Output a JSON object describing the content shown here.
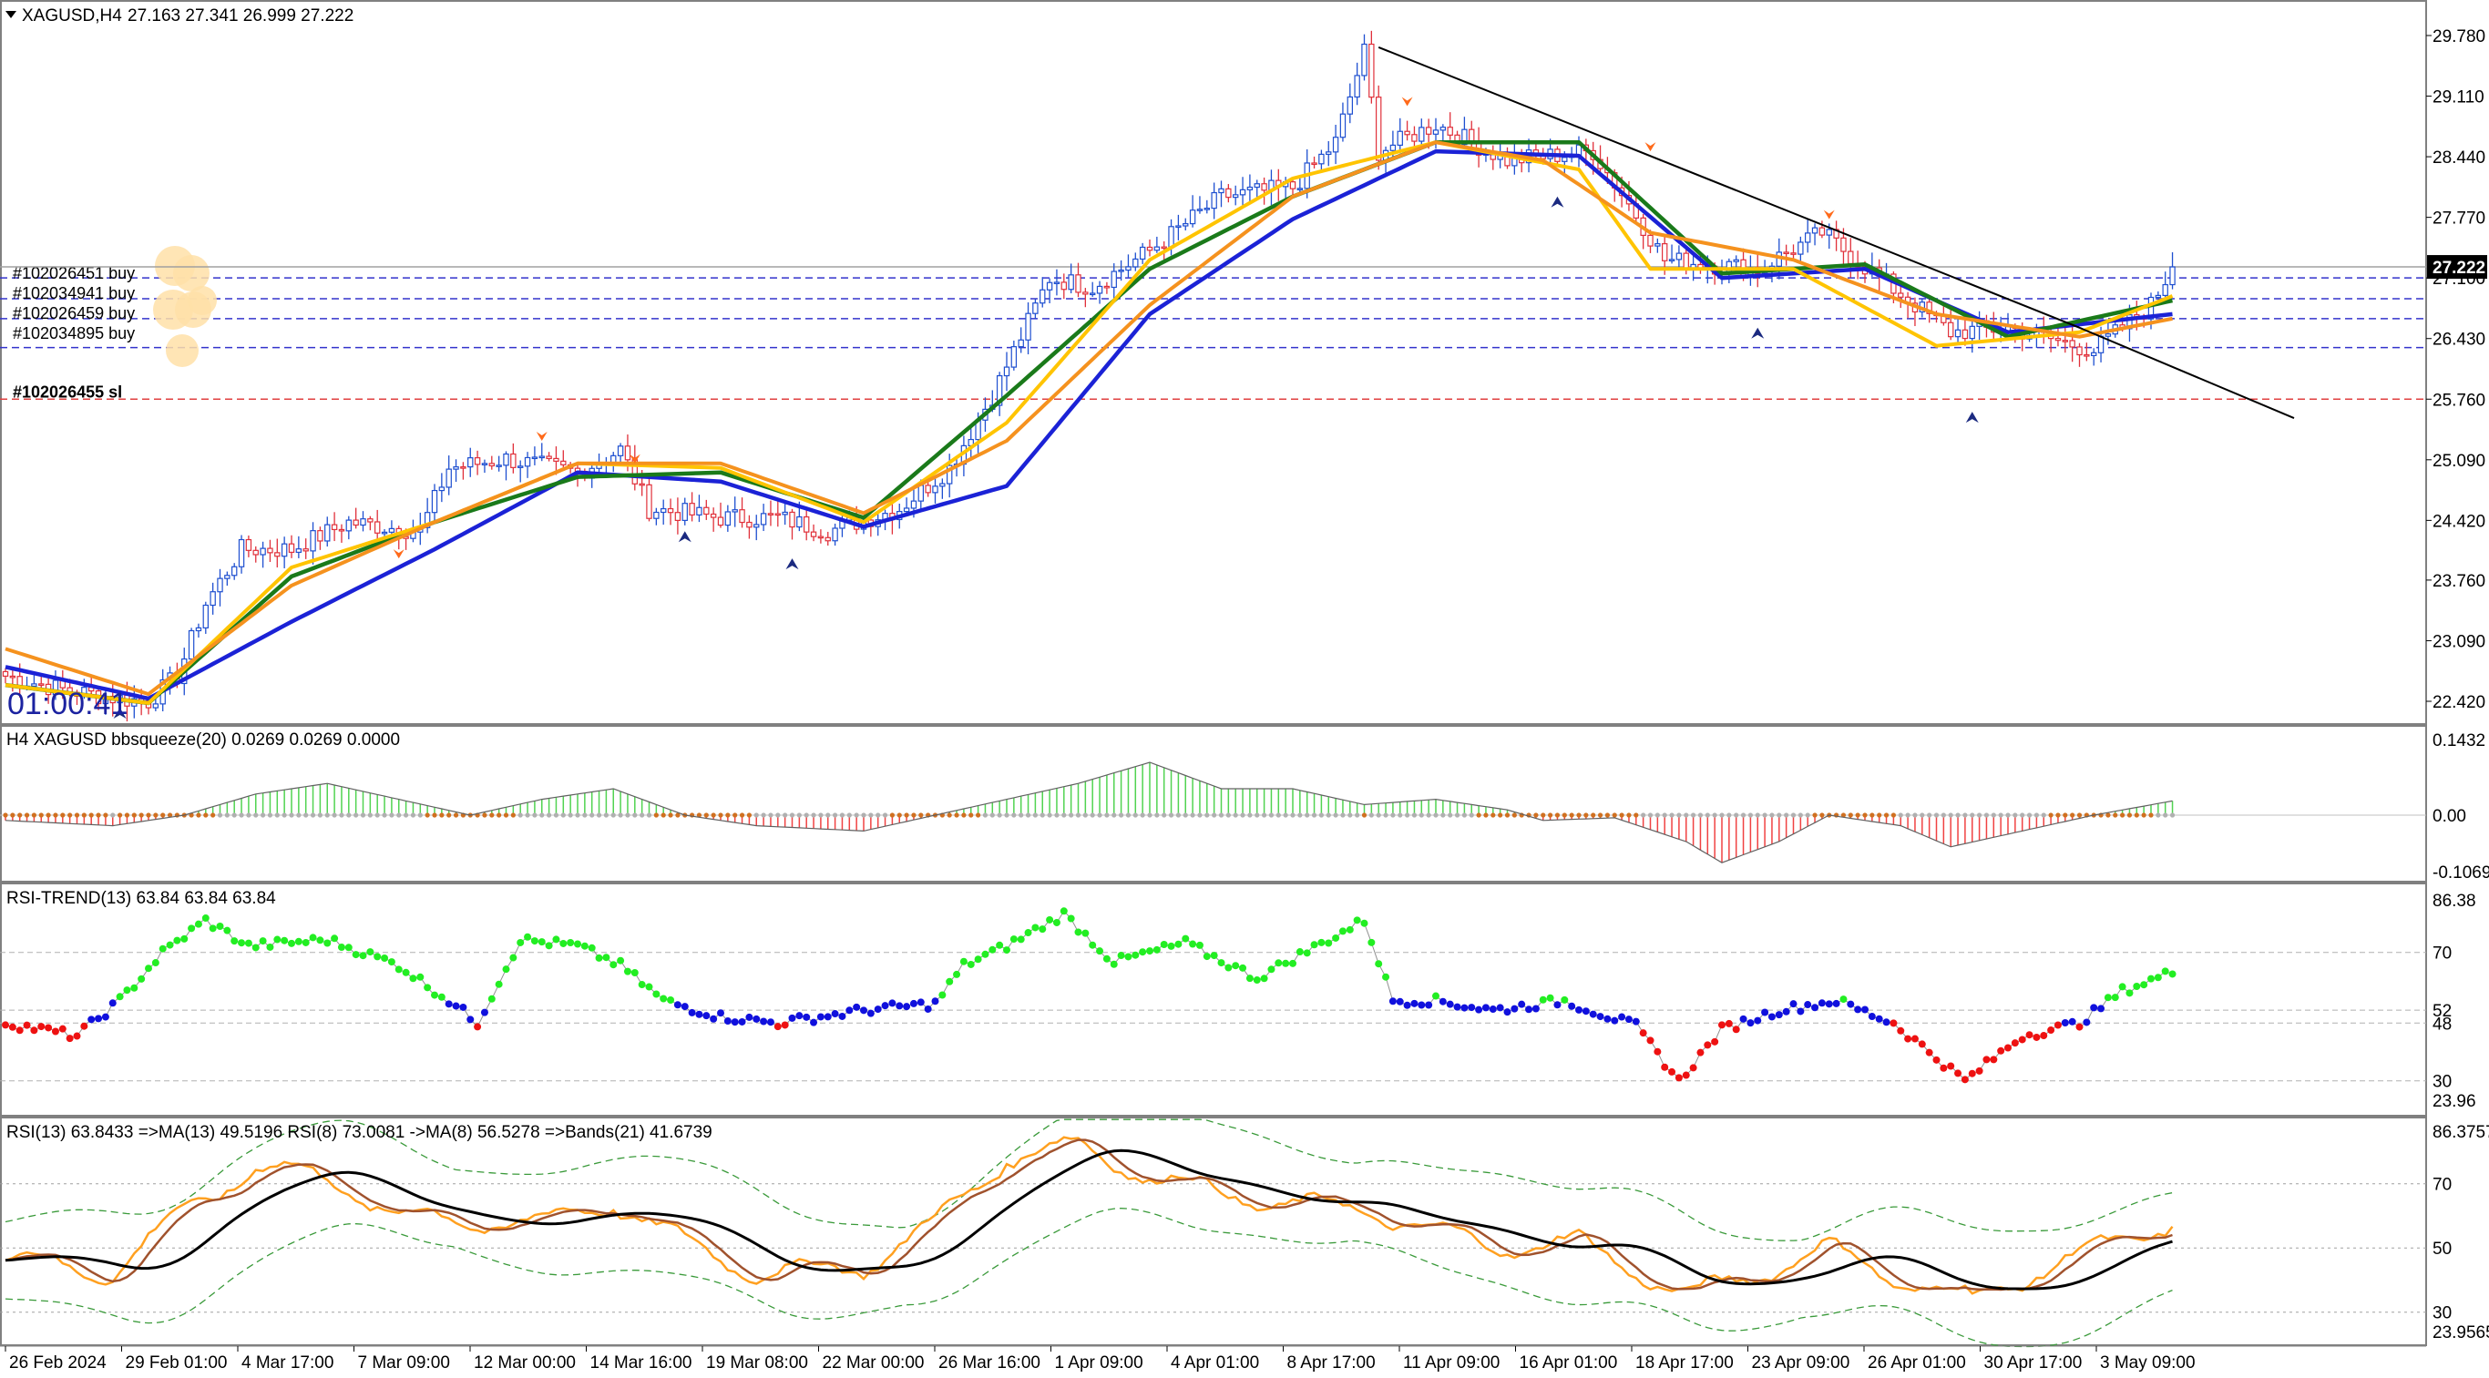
{
  "header": {
    "symbol": "XAGUSD,H4",
    "ohlc": "27.163 27.341 26.999 27.222",
    "collapse_icon": "triangle-down-icon"
  },
  "timer": "01:00:41",
  "current_price": "27.222",
  "colors": {
    "bull_candle": "#1e4fd0",
    "bear_candle": "#e0303a",
    "ma_blue": "#1b22d6",
    "ma_green": "#1a7a1a",
    "ma_yellow": "#ffc400",
    "ma_orange": "#f5921e",
    "trendline": "#000000",
    "hist_up": "#33cc33",
    "hist_down": "#ee2222",
    "rsi_green": "#22ee22",
    "rsi_blue": "#1010dd",
    "rsi_red": "#ee1111"
  },
  "orders": [
    {
      "label": "#102026451 buy",
      "price": "27.100"
    },
    {
      "label": "#102034941 buy",
      "price": "26.870"
    },
    {
      "label": "#102026459 buy",
      "price": "26.650"
    },
    {
      "label": "#102034895 buy",
      "price": "26.330"
    },
    {
      "label": "#102026455 sl",
      "price": "25.760"
    }
  ],
  "panes": {
    "bbsqueeze": {
      "title": "H4 XAGUSD bbsqueeze(20) 0.0269 0.0269 0.0000",
      "levels": [
        "0.1432",
        "0.00",
        "-0.1069"
      ]
    },
    "rsi_trend": {
      "title": "RSI-TREND(13) 63.84 63.84 63.84",
      "levels": [
        "86.38",
        "70",
        "52",
        "48",
        "30",
        "23.96"
      ]
    },
    "rsi": {
      "title": "RSI(13) 63.8433  =>MA(13) 49.5196  RSI(8) 73.0081  ->MA(8) 56.5278  =>Bands(21) 41.6739",
      "levels": [
        "86.3757",
        "70",
        "50",
        "30",
        "23.9565"
      ]
    }
  },
  "chart_data": {
    "type": "candlestick",
    "symbol": "XAGUSD",
    "timeframe": "H4",
    "y_ticks": [
      "29.780",
      "29.110",
      "28.440",
      "27.770",
      "27.100",
      "26.430",
      "25.760",
      "25.090",
      "24.420",
      "23.760",
      "23.090",
      "22.420"
    ],
    "ylim": [
      22.08,
      30.2
    ],
    "x_ticks": [
      "26 Feb 2024",
      "29 Feb 01:00",
      "4 Mar 17:00",
      "7 Mar 09:00",
      "12 Mar 00:00",
      "14 Mar 16:00",
      "19 Mar 08:00",
      "22 Mar 00:00",
      "26 Mar 16:00",
      "1 Apr 09:00",
      "4 Apr 01:00",
      "8 Apr 17:00",
      "11 Apr 09:00",
      "16 Apr 01:00",
      "18 Apr 17:00",
      "23 Apr 09:00",
      "26 Apr 01:00",
      "30 Apr 17:00",
      "3 May 09:00"
    ],
    "close_path_anchors": [
      [
        0,
        22.7
      ],
      [
        8,
        22.55
      ],
      [
        16,
        22.45
      ],
      [
        20,
        22.42
      ],
      [
        24,
        22.7
      ],
      [
        28,
        23.5
      ],
      [
        33,
        24.1
      ],
      [
        40,
        24.1
      ],
      [
        48,
        24.4
      ],
      [
        58,
        24.3
      ],
      [
        62,
        25.0
      ],
      [
        70,
        25.1
      ],
      [
        80,
        24.95
      ],
      [
        86,
        25.2
      ],
      [
        90,
        24.55
      ],
      [
        100,
        24.45
      ],
      [
        108,
        24.45
      ],
      [
        115,
        24.3
      ],
      [
        125,
        24.55
      ],
      [
        132,
        25.0
      ],
      [
        138,
        25.8
      ],
      [
        146,
        27.1
      ],
      [
        152,
        27.0
      ],
      [
        160,
        27.4
      ],
      [
        170,
        28.0
      ],
      [
        180,
        28.1
      ],
      [
        186,
        28.6
      ],
      [
        190,
        29.6
      ],
      [
        192,
        28.5
      ],
      [
        200,
        28.8
      ],
      [
        210,
        28.4
      ],
      [
        222,
        28.5
      ],
      [
        228,
        27.8
      ],
      [
        232,
        27.3
      ],
      [
        245,
        27.2
      ],
      [
        254,
        27.6
      ],
      [
        262,
        27.1
      ],
      [
        272,
        26.5
      ],
      [
        280,
        26.55
      ],
      [
        292,
        26.3
      ],
      [
        300,
        26.8
      ],
      [
        303,
        27.222
      ]
    ],
    "series": [
      {
        "name": "",
        "anchors": [
          [
            0,
            22.8
          ],
          [
            20,
            22.45
          ],
          [
            40,
            23.3
          ],
          [
            60,
            24.1
          ],
          [
            80,
            24.95
          ],
          [
            100,
            24.85
          ],
          [
            120,
            24.35
          ],
          [
            140,
            24.8
          ],
          [
            160,
            26.7
          ],
          [
            180,
            27.75
          ],
          [
            200,
            28.5
          ],
          [
            220,
            28.45
          ],
          [
            240,
            27.1
          ],
          [
            260,
            27.2
          ],
          [
            280,
            26.5
          ],
          [
            303,
            26.7
          ]
        ]
      },
      {
        "name": "",
        "anchors": [
          [
            0,
            22.6
          ],
          [
            20,
            22.4
          ],
          [
            40,
            23.8
          ],
          [
            60,
            24.4
          ],
          [
            80,
            24.9
          ],
          [
            100,
            24.95
          ],
          [
            120,
            24.45
          ],
          [
            140,
            25.8
          ],
          [
            160,
            27.2
          ],
          [
            180,
            28.0
          ],
          [
            200,
            28.6
          ],
          [
            220,
            28.6
          ],
          [
            240,
            27.15
          ],
          [
            260,
            27.25
          ],
          [
            280,
            26.45
          ],
          [
            303,
            26.85
          ]
        ]
      },
      {
        "name": "",
        "anchors": [
          [
            0,
            22.6
          ],
          [
            20,
            22.4
          ],
          [
            40,
            23.9
          ],
          [
            60,
            24.4
          ],
          [
            80,
            25.05
          ],
          [
            100,
            25.0
          ],
          [
            120,
            24.4
          ],
          [
            140,
            25.5
          ],
          [
            160,
            27.3
          ],
          [
            180,
            28.2
          ],
          [
            200,
            28.6
          ],
          [
            220,
            28.3
          ],
          [
            230,
            27.2
          ],
          [
            250,
            27.2
          ],
          [
            270,
            26.35
          ],
          [
            290,
            26.5
          ],
          [
            303,
            26.9
          ]
        ]
      },
      {
        "name": "",
        "anchors": [
          [
            0,
            23.0
          ],
          [
            20,
            22.5
          ],
          [
            40,
            23.7
          ],
          [
            60,
            24.4
          ],
          [
            80,
            25.05
          ],
          [
            100,
            25.05
          ],
          [
            120,
            24.5
          ],
          [
            140,
            25.3
          ],
          [
            160,
            26.8
          ],
          [
            180,
            28.0
          ],
          [
            200,
            28.6
          ],
          [
            215,
            28.4
          ],
          [
            230,
            27.6
          ],
          [
            250,
            27.3
          ],
          [
            270,
            26.7
          ],
          [
            290,
            26.45
          ],
          [
            303,
            26.65
          ]
        ]
      }
    ],
    "trendline": [
      [
        192,
        29.65
      ],
      [
        290,
        26.55
      ],
      [
        320,
        25.55
      ]
    ],
    "bbsqueeze": {
      "anchors": [
        [
          0,
          -0.01
        ],
        [
          15,
          -0.02
        ],
        [
          25,
          0.0
        ],
        [
          35,
          0.04
        ],
        [
          45,
          0.06
        ],
        [
          55,
          0.03
        ],
        [
          65,
          0.0
        ],
        [
          75,
          0.03
        ],
        [
          85,
          0.05
        ],
        [
          95,
          0.0
        ],
        [
          105,
          -0.02
        ],
        [
          120,
          -0.03
        ],
        [
          130,
          0.0
        ],
        [
          140,
          0.03
        ],
        [
          150,
          0.06
        ],
        [
          160,
          0.1
        ],
        [
          170,
          0.05
        ],
        [
          180,
          0.05
        ],
        [
          190,
          0.02
        ],
        [
          200,
          0.03
        ],
        [
          210,
          0.01
        ],
        [
          215,
          -0.01
        ],
        [
          225,
          -0.005
        ],
        [
          235,
          -0.05
        ],
        [
          240,
          -0.09
        ],
        [
          248,
          -0.05
        ],
        [
          255,
          0.0
        ],
        [
          265,
          -0.02
        ],
        [
          272,
          -0.06
        ],
        [
          282,
          -0.03
        ],
        [
          292,
          0.0
        ],
        [
          303,
          0.0269
        ]
      ]
    },
    "rsi_trend": {
      "anchors": [
        [
          0,
          48
        ],
        [
          10,
          44
        ],
        [
          16,
          55
        ],
        [
          22,
          70
        ],
        [
          28,
          80
        ],
        [
          34,
          72
        ],
        [
          45,
          74
        ],
        [
          55,
          66
        ],
        [
          62,
          55
        ],
        [
          66,
          48
        ],
        [
          72,
          74
        ],
        [
          80,
          72
        ],
        [
          86,
          66
        ],
        [
          92,
          55
        ],
        [
          100,
          50
        ],
        [
          108,
          48
        ],
        [
          120,
          52
        ],
        [
          130,
          54
        ],
        [
          134,
          66
        ],
        [
          140,
          72
        ],
        [
          148,
          82
        ],
        [
          155,
          67
        ],
        [
          165,
          73
        ],
        [
          175,
          62
        ],
        [
          190,
          80
        ],
        [
          194,
          55
        ],
        [
          200,
          55
        ],
        [
          208,
          52
        ],
        [
          218,
          55
        ],
        [
          228,
          47
        ],
        [
          234,
          30
        ],
        [
          240,
          46
        ],
        [
          248,
          52
        ],
        [
          256,
          55
        ],
        [
          264,
          48
        ],
        [
          274,
          30
        ],
        [
          282,
          44
        ],
        [
          290,
          48
        ],
        [
          296,
          58
        ],
        [
          303,
          63.84
        ]
      ]
    },
    "rsi": {
      "anchors": [
        [
          0,
          47
        ],
        [
          15,
          42
        ],
        [
          25,
          62
        ],
        [
          35,
          75
        ],
        [
          45,
          72
        ],
        [
          55,
          60
        ],
        [
          65,
          58
        ],
        [
          75,
          58
        ],
        [
          85,
          64
        ],
        [
          95,
          52
        ],
        [
          105,
          42
        ],
        [
          120,
          44
        ],
        [
          130,
          58
        ],
        [
          140,
          78
        ],
        [
          150,
          82
        ],
        [
          160,
          72
        ],
        [
          175,
          65
        ],
        [
          190,
          62
        ],
        [
          200,
          55
        ],
        [
          210,
          50
        ],
        [
          220,
          52
        ],
        [
          235,
          35
        ],
        [
          245,
          42
        ],
        [
          255,
          50
        ],
        [
          265,
          40
        ],
        [
          275,
          34
        ],
        [
          290,
          48
        ],
        [
          303,
          58
        ]
      ]
    }
  }
}
